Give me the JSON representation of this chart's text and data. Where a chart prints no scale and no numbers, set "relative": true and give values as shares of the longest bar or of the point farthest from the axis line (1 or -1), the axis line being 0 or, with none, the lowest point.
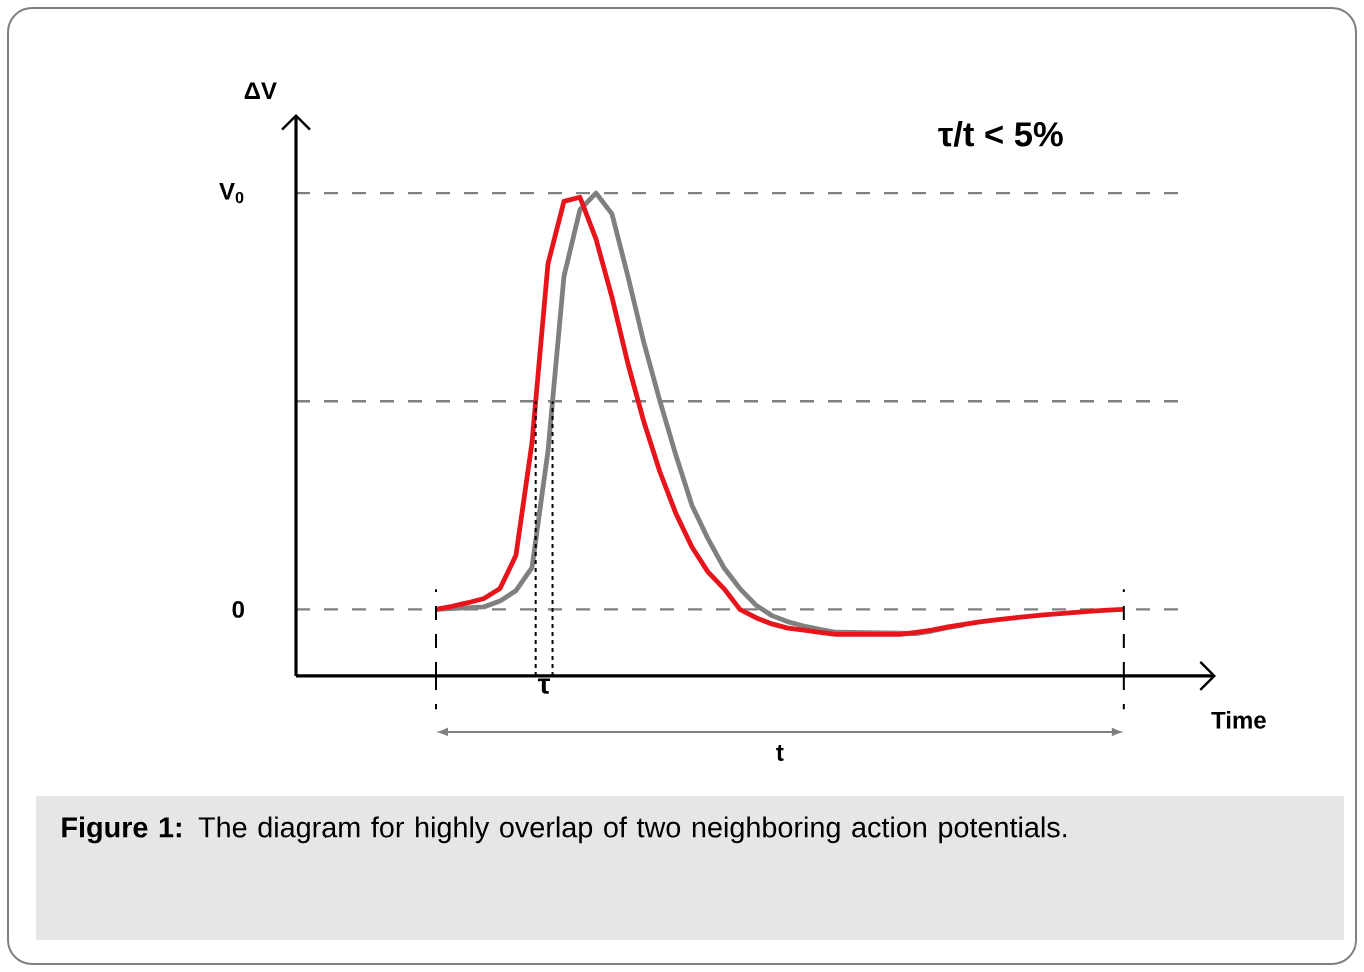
{
  "chart_data": {
    "type": "line",
    "xlabel": "Time",
    "relative": true,
    "categories": [
      null,
      null,
      null,
      null,
      null,
      null,
      null,
      null,
      null,
      null,
      null,
      null,
      null,
      null,
      null,
      null,
      null,
      null,
      null,
      null,
      null,
      null,
      null,
      null,
      null,
      null,
      null,
      null,
      null,
      null,
      null,
      null,
      null,
      null,
      null,
      null,
      null,
      null,
      null,
      null,
      null,
      null,
      null,
      null
    ],
    "series": [
      {
        "color": "#808080",
        "values": [
          0,
          0.002,
          0.004,
          0.006,
          0.02,
          0.045,
          0.1,
          0.38,
          0.8,
          0.96,
          1.0,
          0.95,
          0.8,
          0.64,
          0.5,
          0.37,
          0.25,
          0.17,
          0.1,
          0.05,
          0.01,
          -0.015,
          -0.03,
          -0.04,
          -0.048,
          -0.055,
          null,
          null,
          null,
          null,
          -0.058,
          -0.052,
          -0.044,
          -0.037,
          null,
          null,
          null,
          null,
          null,
          null,
          null,
          null,
          null,
          null
        ]
      },
      {
        "color": "#e8141c",
        "values": [
          0,
          0.007,
          0.016,
          0.026,
          0.05,
          0.13,
          0.4,
          0.83,
          0.98,
          0.99,
          0.89,
          0.75,
          0.59,
          0.45,
          0.33,
          0.23,
          0.15,
          0.09,
          0.05,
          0,
          -0.02,
          -0.035,
          -0.045,
          -0.05,
          -0.055,
          -0.06,
          -0.06,
          -0.06,
          -0.06,
          -0.06,
          -0.055,
          -0.05,
          -0.042,
          -0.036,
          -0.03,
          -0.025,
          -0.021,
          -0.017,
          -0.013,
          -0.01,
          -0.007,
          -0.004,
          -0.002,
          0
        ]
      }
    ],
    "marker": "none",
    "line_style": "solid",
    "ref_lines": [
      {
        "axis": "y",
        "value": 0,
        "label": "0",
        "color": "#808080",
        "line_style": "dashed"
      },
      {
        "axis": "y",
        "value": 0.5,
        "color": "#808080",
        "line_style": "dashed"
      },
      {
        "axis": "y",
        "value": 1,
        "label": "V$_{0}$",
        "color": "#808080",
        "line_style": "dashed"
      }
    ],
    "annotations": [
      "τ/t < 5%",
      "τ",
      "t",
      "**Figure 1:** The diagram for highly overlap of two neighboring action potentials.",
      "ΔV"
    ]
  }
}
